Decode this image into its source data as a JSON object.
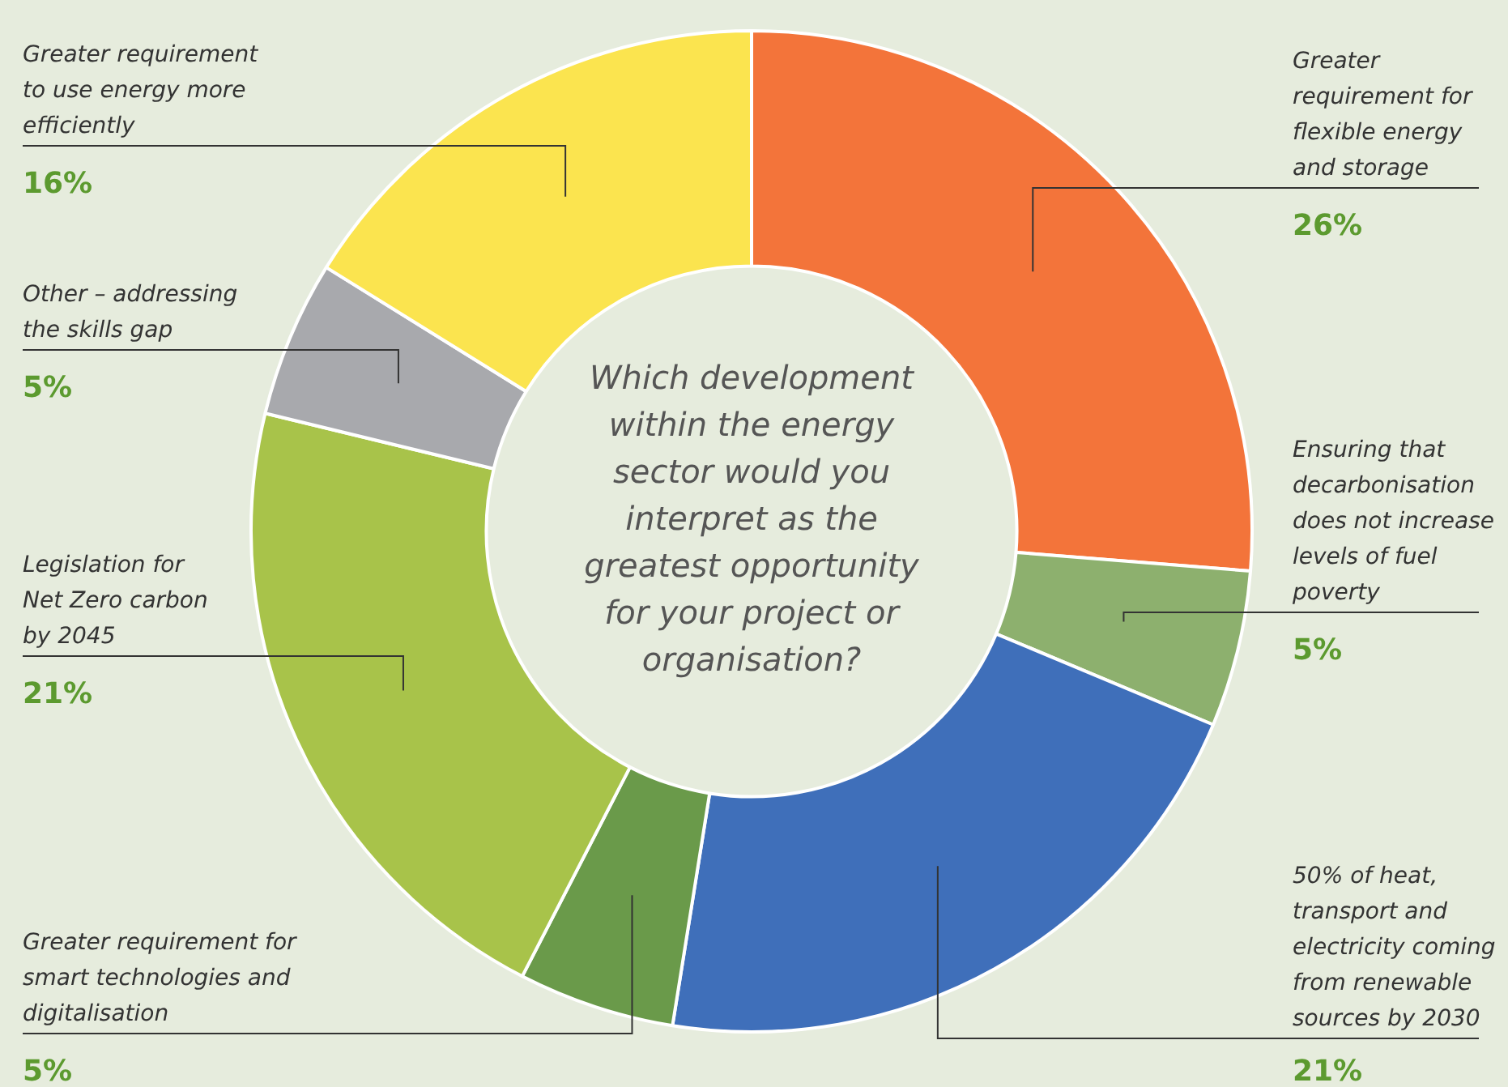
{
  "chart_data": {
    "type": "donut",
    "title": "Which development within the energy sector would you interpret as the greatest opportunity for your project or organisation?",
    "categories": [
      "Greater requirement for flexible energy and storage",
      "Ensuring that decarbonisation does not increase levels of fuel poverty",
      "50% of heat, transport and electricity coming from renewable sources by 2030",
      "Greater requirement for smart technologies and digitalisation",
      "Legislation for Net Zero carbon by 2045",
      "Other – addressing the skills gap",
      "Greater requirement to use energy more efficiently"
    ],
    "values": [
      26,
      5,
      21,
      5,
      21,
      5,
      16
    ],
    "value_labels": [
      "26%",
      "5%",
      "21%",
      "5%",
      "21%",
      "5%",
      "16%"
    ],
    "colors": [
      "#f3743a",
      "#8db06e",
      "#3f6fba",
      "#6a9a4a",
      "#a8c34a",
      "#a8a9ad",
      "#fbe44f"
    ],
    "legend": false
  }
}
